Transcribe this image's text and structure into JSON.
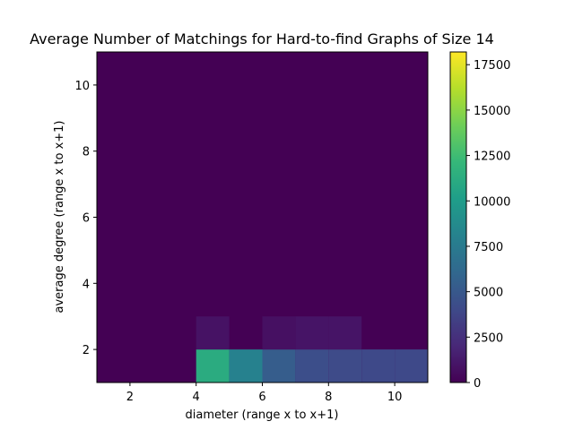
{
  "chart_data": {
    "type": "heatmap",
    "title": "Average Number of Matchings for Hard-to-find Graphs of Size 14",
    "xlabel": "diameter (range x to x+1)",
    "ylabel": "average degree (range x to x+1)",
    "xlim": [
      1,
      11
    ],
    "ylim": [
      1,
      11
    ],
    "xticks": [
      2,
      4,
      6,
      8,
      10
    ],
    "yticks": [
      2,
      4,
      6,
      8,
      10
    ],
    "x_bins": [
      1,
      2,
      3,
      4,
      5,
      6,
      7,
      8,
      9,
      10
    ],
    "y_bins": [
      1,
      2,
      3,
      4,
      5,
      6,
      7,
      8,
      9,
      10
    ],
    "colormap": "viridis",
    "color_range": [
      0,
      18200
    ],
    "colorbar_ticks": [
      0,
      2500,
      5000,
      7500,
      10000,
      12500,
      15000,
      17500
    ],
    "grid": false,
    "cells": [
      {
        "x": 4,
        "y": 1,
        "value": 11200
      },
      {
        "x": 5,
        "y": 1,
        "value": 8000
      },
      {
        "x": 6,
        "y": 1,
        "value": 5300
      },
      {
        "x": 7,
        "y": 1,
        "value": 4300
      },
      {
        "x": 8,
        "y": 1,
        "value": 4100
      },
      {
        "x": 9,
        "y": 1,
        "value": 4000
      },
      {
        "x": 10,
        "y": 1,
        "value": 4000
      },
      {
        "x": 4,
        "y": 2,
        "value": 900
      },
      {
        "x": 6,
        "y": 2,
        "value": 800
      },
      {
        "x": 7,
        "y": 2,
        "value": 1000
      },
      {
        "x": 8,
        "y": 2,
        "value": 1000
      }
    ]
  },
  "colors": {
    "background": "#ffffff",
    "axis": "#000000",
    "colormap_stops": [
      "#440154",
      "#482878",
      "#3e4a89",
      "#31688e",
      "#26828e",
      "#1f9e89",
      "#35b779",
      "#6ece58",
      "#b5de2b",
      "#fde725"
    ]
  }
}
